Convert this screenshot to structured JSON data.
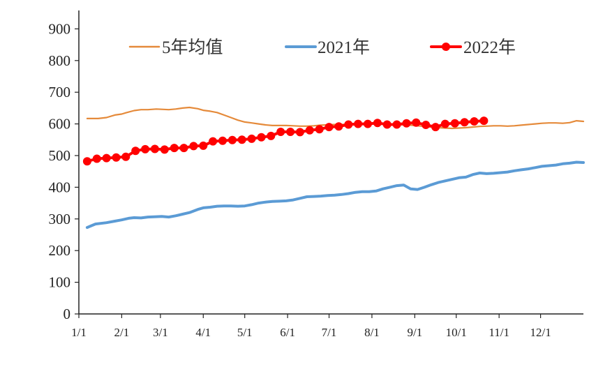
{
  "chart_data": {
    "type": "line",
    "title": "",
    "xlabel": "",
    "ylabel": "",
    "ylim": [
      0,
      900
    ],
    "y_ticks": [
      0,
      100,
      200,
      300,
      400,
      500,
      600,
      700,
      800,
      900
    ],
    "x_range_days": [
      0,
      365
    ],
    "x_ticks": [
      {
        "label": "1/1",
        "day": 0
      },
      {
        "label": "2/1",
        "day": 31
      },
      {
        "label": "3/1",
        "day": 59
      },
      {
        "label": "4/1",
        "day": 90
      },
      {
        "label": "5/1",
        "day": 120
      },
      {
        "label": "6/1",
        "day": 151
      },
      {
        "label": "7/1",
        "day": 181
      },
      {
        "label": "8/1",
        "day": 212
      },
      {
        "label": "9/1",
        "day": 243
      },
      {
        "label": "10/1",
        "day": 273
      },
      {
        "label": "11/1",
        "day": 304
      },
      {
        "label": "12/1",
        "day": 334
      }
    ],
    "grid": false,
    "legend_position": "top",
    "series": [
      {
        "name": "5年均值",
        "color": "#E58A3A",
        "marker": "none",
        "x": [
          6,
          14,
          20,
          26,
          31,
          34,
          40,
          45,
          50,
          56,
          60,
          65,
          70,
          75,
          80,
          86,
          90,
          95,
          100,
          105,
          110,
          115,
          120,
          125,
          130,
          135,
          140,
          145,
          150,
          155,
          160,
          165,
          170,
          175,
          180,
          185,
          190,
          195,
          200,
          205,
          210,
          215,
          220,
          225,
          230,
          235,
          240,
          245,
          250,
          255,
          260,
          265,
          270,
          275,
          280,
          285,
          290,
          295,
          300,
          305,
          310,
          315,
          320,
          325,
          330,
          335,
          340,
          345,
          350,
          355,
          360,
          365
        ],
        "values": [
          617,
          617,
          620,
          628,
          631,
          635,
          642,
          645,
          645,
          647,
          646,
          645,
          647,
          650,
          652,
          648,
          643,
          640,
          636,
          628,
          620,
          612,
          606,
          603,
          600,
          597,
          595,
          595,
          595,
          594,
          593,
          593,
          594,
          596,
          597,
          598,
          598,
          599,
          600,
          600,
          600,
          600,
          599,
          599,
          598,
          597,
          596,
          594,
          592,
          590,
          588,
          587,
          586,
          587,
          588,
          590,
          592,
          593,
          594,
          594,
          593,
          594,
          596,
          598,
          600,
          602,
          603,
          603,
          602,
          604,
          610,
          608
        ]
      },
      {
        "name": "2021年",
        "color": "#5B9BD5",
        "marker": "none",
        "x": [
          6,
          12,
          20,
          26,
          31,
          36,
          40,
          45,
          50,
          56,
          60,
          65,
          70,
          75,
          80,
          86,
          90,
          95,
          100,
          105,
          110,
          115,
          120,
          125,
          130,
          135,
          140,
          145,
          150,
          155,
          160,
          165,
          170,
          175,
          180,
          185,
          190,
          195,
          200,
          205,
          210,
          215,
          220,
          225,
          230,
          235,
          240,
          245,
          250,
          255,
          260,
          265,
          270,
          275,
          280,
          285,
          290,
          295,
          300,
          305,
          310,
          315,
          320,
          325,
          330,
          335,
          340,
          345,
          350,
          355,
          360,
          365
        ],
        "values": [
          273,
          284,
          288,
          293,
          297,
          302,
          304,
          303,
          306,
          307,
          308,
          306,
          310,
          315,
          320,
          330,
          335,
          337,
          340,
          341,
          341,
          340,
          341,
          345,
          350,
          353,
          355,
          356,
          357,
          360,
          365,
          370,
          371,
          372,
          374,
          375,
          377,
          380,
          384,
          386,
          386,
          388,
          395,
          400,
          405,
          407,
          395,
          393,
          400,
          408,
          415,
          420,
          425,
          430,
          432,
          440,
          445,
          443,
          444,
          446,
          448,
          452,
          455,
          458,
          462,
          466,
          468,
          470,
          474,
          476,
          479,
          478
        ]
      },
      {
        "name": "2022年",
        "color": "#FF0000",
        "marker": "circle",
        "x": [
          6,
          13,
          20,
          27,
          34,
          41,
          48,
          55,
          62,
          69,
          76,
          83,
          90,
          97,
          104,
          111,
          118,
          125,
          132,
          139,
          146,
          153,
          160,
          167,
          174,
          181,
          188,
          195,
          202,
          209,
          216,
          223,
          230,
          237,
          244,
          251,
          258,
          265,
          272,
          279,
          286,
          293
        ],
        "values": [
          482,
          490,
          492,
          494,
          496,
          515,
          520,
          521,
          519,
          524,
          524,
          530,
          531,
          545,
          547,
          549,
          550,
          553,
          558,
          562,
          575,
          575,
          574,
          580,
          583,
          590,
          592,
          598,
          600,
          600,
          603,
          598,
          598,
          602,
          604,
          597,
          590,
          600,
          602,
          605,
          608,
          610
        ]
      }
    ]
  }
}
